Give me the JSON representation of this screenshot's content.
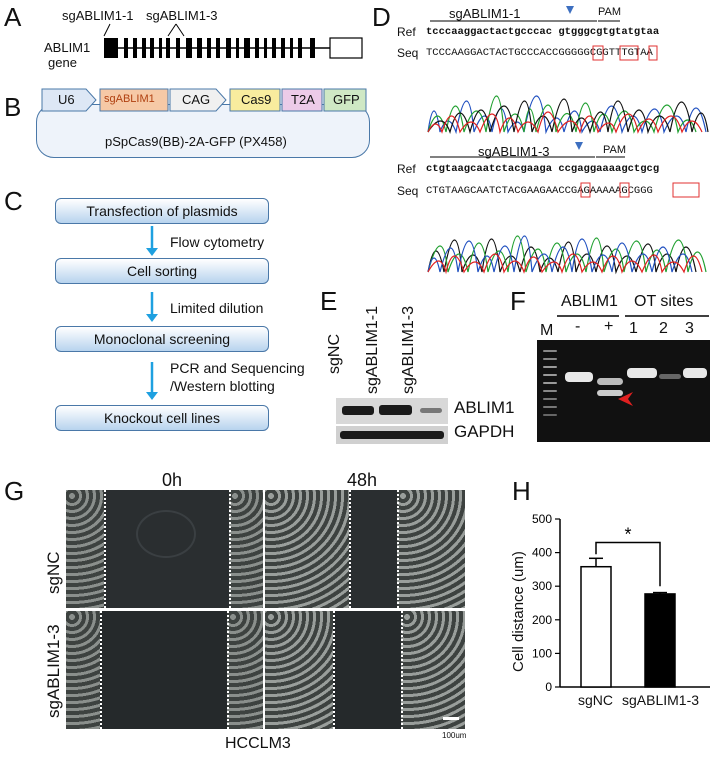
{
  "panels": {
    "A": "A",
    "B": "B",
    "C": "C",
    "D": "D",
    "E": "E",
    "F": "F",
    "G": "G",
    "H": "H"
  },
  "panelA": {
    "sg1": "sgABLIM1-1",
    "sg3": "sgABLIM1-3",
    "gene1": "ABLIM1",
    "gene2": "gene"
  },
  "panelB": {
    "u6": "U6",
    "sg": "sgABLIM1",
    "cag": "CAG",
    "cas9": "Cas9",
    "t2a": "T2A",
    "gfp": "GFP",
    "plasmid": "pSpCas9(BB)-2A-GFP (PX458)"
  },
  "panelC": {
    "steps": [
      "Transfection of plasmids",
      "Cell sorting",
      "Monoclonal screening",
      "Knockout cell lines"
    ],
    "arrows": [
      "Flow cytometry",
      "Limited dilution",
      "PCR and Sequencing",
      "/Western blotting"
    ]
  },
  "panelD": {
    "ref": "Ref",
    "seq": "Seq",
    "pam": "PAM",
    "s1": "sgABLIM1-1",
    "s3": "sgABLIM1-3",
    "ref1": "tcccaaggactactgcccac gtgggcgtgtatgtaa",
    "seq1": "TCCCAAGGACTACTGCCCACCGGGGGCGGTTTGTAA",
    "ref3": "ctgtaagcaatctacgaaga ccgaggaaaagctgcg",
    "seq3": "CTGTAAGCAATCTACGAAGAACCGAGAAAAAGCGGG"
  },
  "panelE": {
    "lanes": [
      "sgNC",
      "sgABLIM1-1",
      "sgABLIM1-3"
    ],
    "rows": [
      "ABLIM1",
      "GAPDH"
    ]
  },
  "panelF": {
    "ablim": "ABLIM1",
    "ot": "OT sites",
    "m": "M",
    "lanes": [
      "-",
      "+",
      "1",
      "2",
      "3"
    ]
  },
  "panelG": {
    "t0": "0h",
    "t48": "48h",
    "row1": "sgNC",
    "row2": "sgABLIM1-3",
    "cell": "HCCLM3",
    "scale": "100um"
  },
  "chart_data": {
    "type": "bar",
    "categories": [
      "sgNC",
      "sgABLIM1-3"
    ],
    "values": [
      358,
      277
    ],
    "errors": [
      25,
      4
    ],
    "ylabel": "Cell distance (um)",
    "ylim": [
      0,
      500
    ],
    "yticks": [
      "0",
      "100",
      "200",
      "300",
      "400",
      "500"
    ],
    "significance": "*",
    "colors": [
      "#ffffff",
      "#000000"
    ]
  }
}
